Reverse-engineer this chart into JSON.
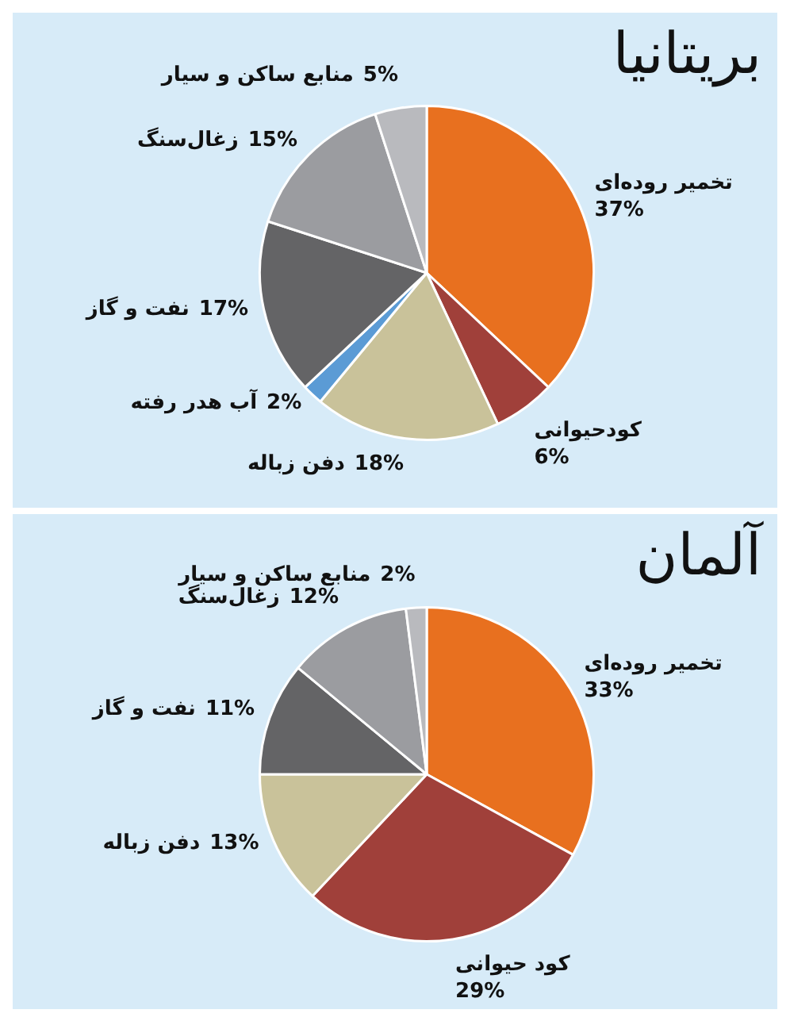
{
  "chart_data": [
    {
      "type": "pie",
      "title": "بریتانیا",
      "categories": [
        "تخمیر روده‌ای",
        "کودحیوانی",
        "دفن زباله",
        "آب هدر رفته",
        "نفت و گاز",
        "زغال‌سنگ",
        "منابع ساکن و سیار"
      ],
      "values": [
        37,
        6,
        18,
        2,
        17,
        15,
        5
      ],
      "colors": [
        "#e8701f",
        "#a0403a",
        "#c9c29a",
        "#5b9bd5",
        "#646466",
        "#9b9ca0",
        "#b9babe"
      ],
      "value_labels": [
        "37%",
        "6%",
        "18%",
        "2%",
        "17%",
        "15%",
        "5%"
      ]
    },
    {
      "type": "pie",
      "title": "آلمان",
      "categories": [
        "تخمیر روده‌ای",
        "کود حیوانی",
        "دفن زباله",
        "نفت و گاز",
        "زغال‌سنگ",
        "منابع ساکن و سیار"
      ],
      "values": [
        33,
        29,
        13,
        11,
        12,
        2
      ],
      "colors": [
        "#e8701f",
        "#a0403a",
        "#c9c29a",
        "#646466",
        "#9b9ca0",
        "#b9babe"
      ],
      "value_labels": [
        "33%",
        "29%",
        "13%",
        "11%",
        "12%",
        "2%"
      ]
    }
  ]
}
